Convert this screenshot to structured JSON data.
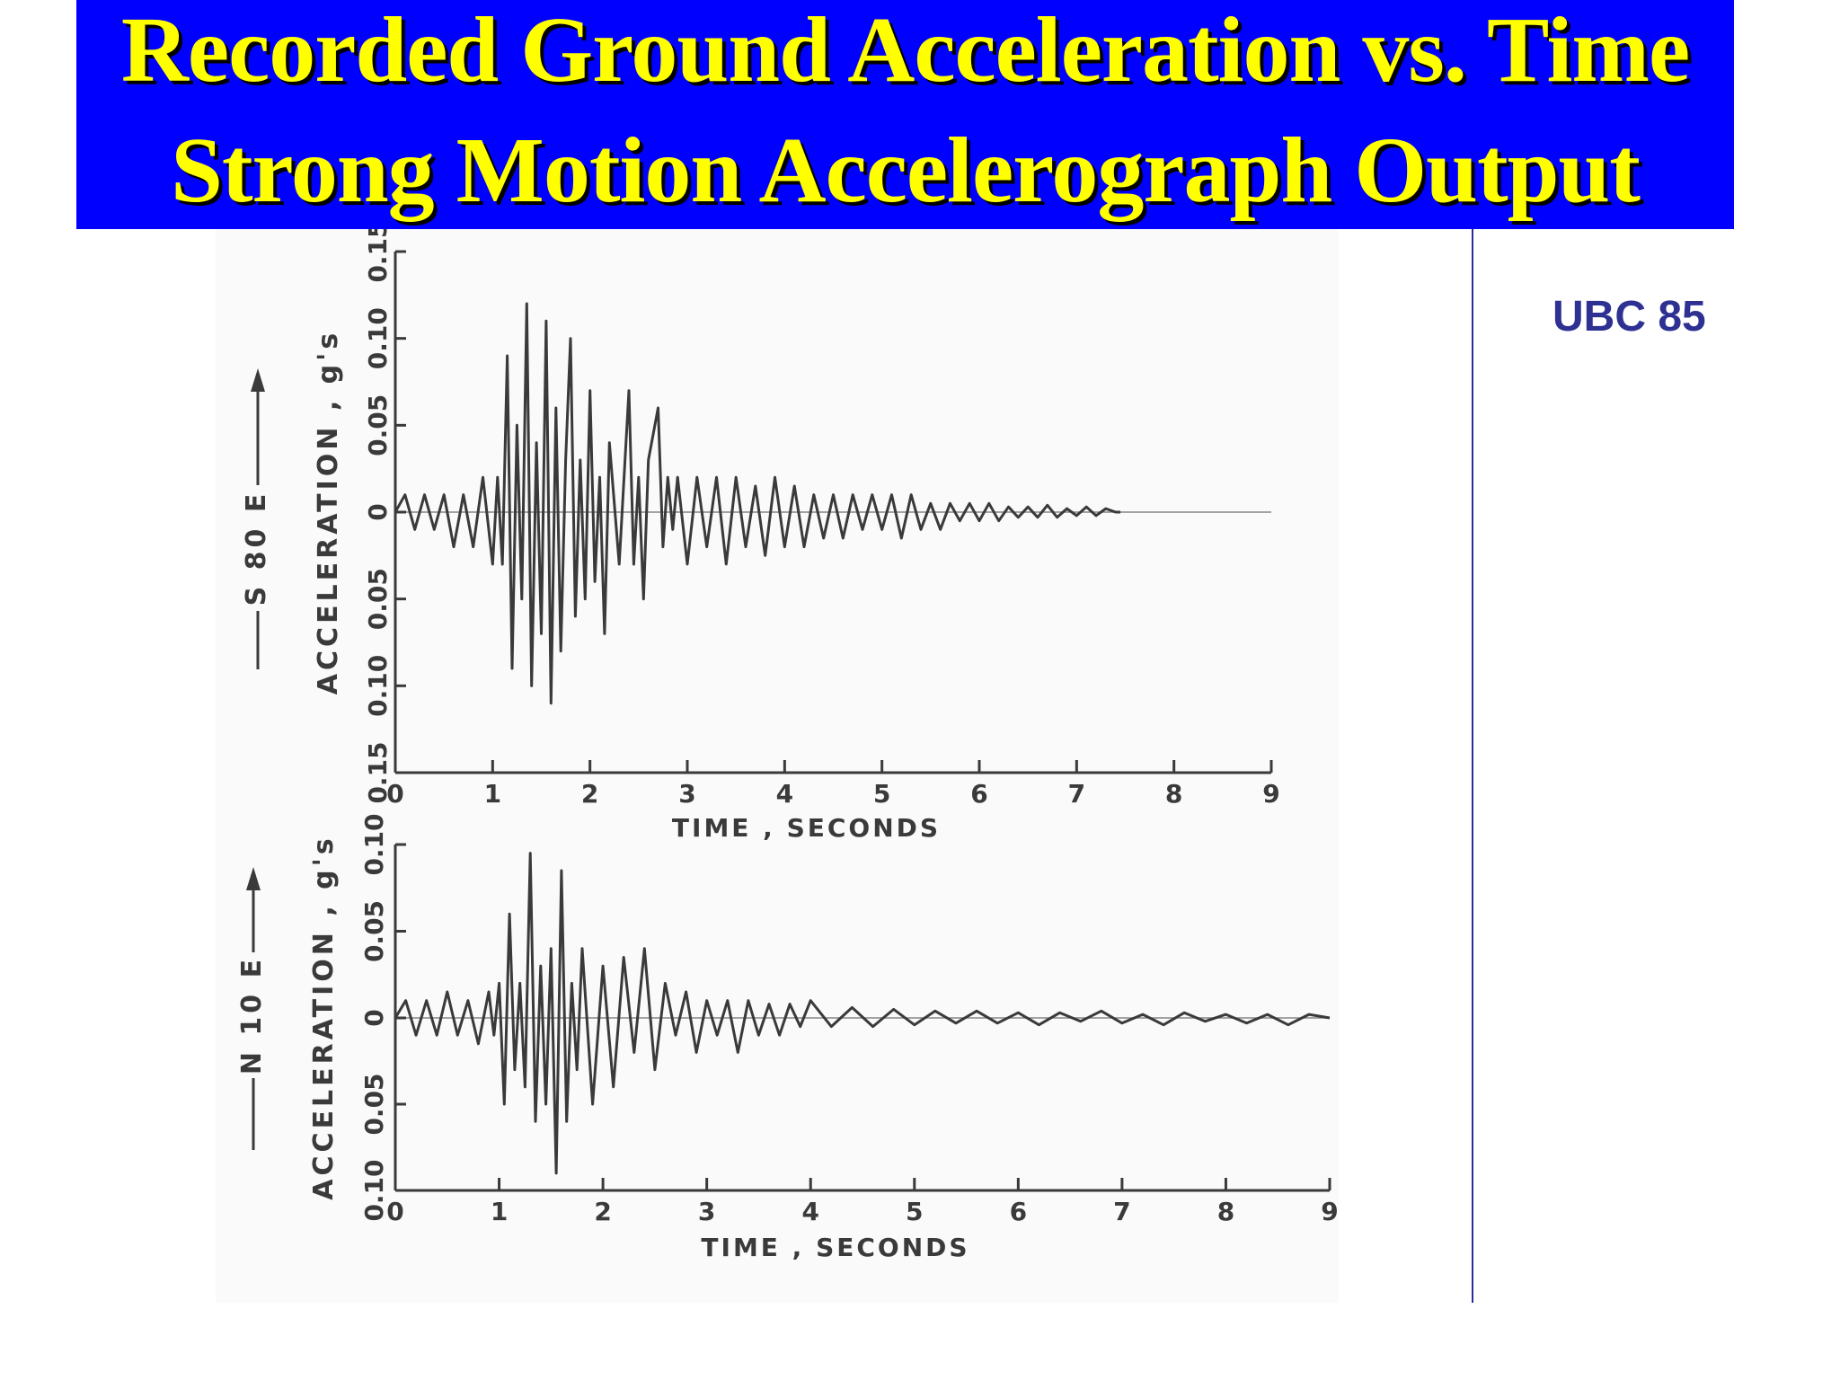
{
  "title": {
    "line1": "Recorded Ground Acceleration vs. Time",
    "line2": "Strong Motion Accelerograph Output"
  },
  "side_label": "UBC 85",
  "colors": {
    "title_background": "#0000ff",
    "title_text": "#ffff00",
    "side_label": "#2e3192",
    "trace": "#3a3a3a"
  },
  "chart_data": [
    {
      "type": "line",
      "component": "S 80 E",
      "xlabel": "TIME , SECONDS",
      "ylabel": "ACCELERATION , g's",
      "xlim": [
        0,
        9
      ],
      "ylim": [
        -0.15,
        0.15
      ],
      "xticks": [
        "0",
        "1",
        "2",
        "3",
        "4",
        "5",
        "6",
        "7",
        "8",
        "9"
      ],
      "yticks": [
        "0.15",
        "0.10",
        "0.05",
        "0",
        "0.05",
        "0.10",
        "0.15"
      ],
      "series": [
        {
          "x": [
            0,
            0.1,
            0.2,
            0.3,
            0.4,
            0.5,
            0.6,
            0.7,
            0.8,
            0.9,
            1.0,
            1.05,
            1.1,
            1.15,
            1.2,
            1.25,
            1.3,
            1.35,
            1.4,
            1.45,
            1.5,
            1.55,
            1.6,
            1.65,
            1.7,
            1.75,
            1.8,
            1.85,
            1.9,
            1.95,
            2.0,
            2.05,
            2.1,
            2.15,
            2.2,
            2.3,
            2.4,
            2.45,
            2.5,
            2.55,
            2.6,
            2.7,
            2.75,
            2.8,
            2.85,
            2.9,
            3.0,
            3.1,
            3.2,
            3.3,
            3.4,
            3.5,
            3.6,
            3.7,
            3.8,
            3.9,
            4.0,
            4.1,
            4.2,
            4.3,
            4.4,
            4.5,
            4.6,
            4.7,
            4.8,
            4.9,
            5.0,
            5.1,
            5.2,
            5.3,
            5.4,
            5.5,
            5.6,
            5.7,
            5.8,
            5.9,
            6.0,
            6.1,
            6.2,
            6.3,
            6.4,
            6.5,
            6.6,
            6.7,
            6.8,
            6.9,
            7.0,
            7.1,
            7.2,
            7.3,
            7.4,
            7.45
          ],
          "y": [
            0,
            0.01,
            -0.01,
            0.01,
            -0.01,
            0.01,
            -0.02,
            0.01,
            -0.02,
            0.02,
            -0.03,
            0.02,
            -0.03,
            0.09,
            -0.09,
            0.05,
            -0.05,
            0.12,
            -0.1,
            0.04,
            -0.07,
            0.11,
            -0.11,
            0.06,
            -0.08,
            0.03,
            0.1,
            -0.06,
            0.03,
            -0.05,
            0.07,
            -0.04,
            0.02,
            -0.07,
            0.04,
            -0.03,
            0.07,
            -0.03,
            0.02,
            -0.05,
            0.03,
            0.06,
            -0.02,
            0.02,
            -0.01,
            0.02,
            -0.03,
            0.02,
            -0.02,
            0.02,
            -0.03,
            0.02,
            -0.02,
            0.015,
            -0.025,
            0.02,
            -0.02,
            0.015,
            -0.02,
            0.01,
            -0.015,
            0.01,
            -0.015,
            0.01,
            -0.01,
            0.01,
            -0.01,
            0.01,
            -0.015,
            0.01,
            -0.01,
            0.005,
            -0.01,
            0.005,
            -0.005,
            0.005,
            -0.005,
            0.005,
            -0.005,
            0.003,
            -0.003,
            0.003,
            -0.003,
            0.004,
            -0.003,
            0.002,
            -0.002,
            0.003,
            -0.002,
            0.002,
            0,
            0
          ]
        }
      ]
    },
    {
      "type": "line",
      "component": "N 10 E",
      "xlabel": "TIME , SECONDS",
      "ylabel": "ACCELERATION , g's",
      "xlim": [
        0,
        9
      ],
      "ylim": [
        -0.1,
        0.1
      ],
      "xticks": [
        "0",
        "1",
        "2",
        "3",
        "4",
        "5",
        "6",
        "7",
        "8",
        "9"
      ],
      "yticks": [
        "0.10",
        "0.05",
        "0",
        "0.05",
        "0.10"
      ],
      "series": [
        {
          "x": [
            0,
            0.1,
            0.2,
            0.3,
            0.4,
            0.5,
            0.6,
            0.7,
            0.8,
            0.9,
            0.95,
            1.0,
            1.05,
            1.1,
            1.15,
            1.2,
            1.25,
            1.3,
            1.35,
            1.4,
            1.45,
            1.5,
            1.55,
            1.6,
            1.65,
            1.7,
            1.75,
            1.8,
            1.9,
            2.0,
            2.1,
            2.2,
            2.3,
            2.4,
            2.5,
            2.6,
            2.7,
            2.8,
            2.9,
            3.0,
            3.1,
            3.2,
            3.3,
            3.4,
            3.5,
            3.6,
            3.7,
            3.8,
            3.9,
            4.0,
            4.2,
            4.4,
            4.6,
            4.8,
            5.0,
            5.2,
            5.4,
            5.6,
            5.8,
            6.0,
            6.2,
            6.4,
            6.6,
            6.8,
            7.0,
            7.2,
            7.4,
            7.6,
            7.8,
            8.0,
            8.2,
            8.4,
            8.6,
            8.8,
            9.0
          ],
          "y": [
            0,
            0.01,
            -0.01,
            0.01,
            -0.01,
            0.015,
            -0.01,
            0.01,
            -0.015,
            0.015,
            -0.01,
            0.02,
            -0.05,
            0.06,
            -0.03,
            0.02,
            -0.04,
            0.095,
            -0.06,
            0.03,
            -0.05,
            0.04,
            -0.09,
            0.085,
            -0.06,
            0.02,
            -0.03,
            0.04,
            -0.05,
            0.03,
            -0.04,
            0.035,
            -0.02,
            0.04,
            -0.03,
            0.02,
            -0.01,
            0.015,
            -0.02,
            0.01,
            -0.01,
            0.01,
            -0.02,
            0.01,
            -0.01,
            0.008,
            -0.01,
            0.008,
            -0.005,
            0.01,
            -0.005,
            0.006,
            -0.005,
            0.005,
            -0.004,
            0.004,
            -0.003,
            0.004,
            -0.003,
            0.003,
            -0.004,
            0.003,
            -0.002,
            0.004,
            -0.003,
            0.002,
            -0.004,
            0.003,
            -0.002,
            0.002,
            -0.003,
            0.002,
            -0.004,
            0.002,
            0
          ]
        }
      ]
    }
  ]
}
